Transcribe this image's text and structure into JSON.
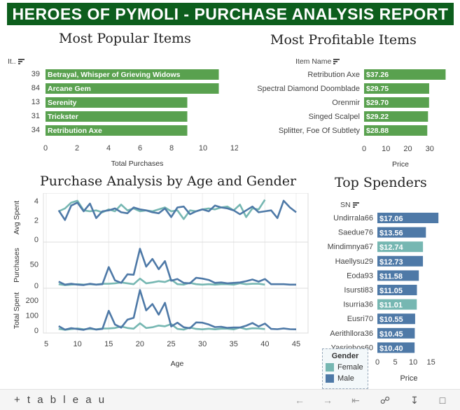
{
  "banner": {
    "title": "HEROES OF PYMOLI - PURCHASE ANALYSIS REPORT"
  },
  "colors": {
    "green_bar": "#59a14f",
    "female": "#76b7b2",
    "male": "#4e79a7",
    "banner_bg": "#0d5e1d"
  },
  "popular": {
    "title": "Most Popular Items",
    "field_label": "It..",
    "xlabel": "Total Purchases",
    "chart_data": {
      "type": "bar",
      "orientation": "horizontal",
      "categories": [
        "Betrayal, Whisper of Grieving Widows",
        "Arcane Gem",
        "Serenity",
        "Trickster",
        "Retribution Axe"
      ],
      "ids": [
        "39",
        "84",
        "13",
        "31",
        "34"
      ],
      "values": [
        11,
        11,
        9,
        9,
        9
      ],
      "xticks": [
        "0",
        "2",
        "4",
        "6",
        "8",
        "10",
        "12"
      ],
      "xlim": [
        0,
        12
      ]
    }
  },
  "profitable": {
    "title": "Most Profitable Items",
    "field_label": "Item Name",
    "xlabel": "Price",
    "chart_data": {
      "type": "bar",
      "orientation": "horizontal",
      "categories": [
        "Retribution Axe",
        "Spectral Diamond Doomblade",
        "Orenmir",
        "Singed Scalpel",
        "Splitter, Foe Of Subtlety"
      ],
      "values": [
        37.26,
        29.75,
        29.7,
        29.22,
        28.88
      ],
      "labels": [
        "$37.26",
        "$29.75",
        "$29.70",
        "$29.22",
        "$28.88"
      ],
      "xticks": [
        "0",
        "10",
        "20",
        "30"
      ],
      "xlim": [
        0,
        40
      ]
    }
  },
  "age_gender": {
    "title": "Purchase Analysis by Age and Gender",
    "xlabel": "Age",
    "panels": [
      "Avg Spent",
      "Purchases",
      "Total Spent"
    ],
    "chart_data": {
      "type": "line",
      "xticks": [
        "5",
        "10",
        "15",
        "20",
        "25",
        "30",
        "35",
        "40",
        "45"
      ],
      "xlim": [
        5,
        45
      ],
      "panels": [
        {
          "ylabel": "Avg Spent",
          "ylim": [
            0,
            4.5
          ],
          "yticks": [
            "0",
            "2",
            "4"
          ],
          "series": [
            {
              "name": "Female",
              "x": [
                7,
                8,
                9,
                10,
                11,
                12,
                13,
                14,
                15,
                16,
                17,
                18,
                19,
                20,
                21,
                22,
                23,
                24,
                25,
                26,
                27,
                28,
                29,
                30,
                31,
                32,
                33,
                34,
                35,
                36,
                37,
                38,
                39,
                40
              ],
              "y": [
                2.9,
                3.2,
                3.8,
                4.0,
                3.0,
                2.9,
                3.0,
                2.8,
                3.1,
                2.9,
                3.6,
                3.0,
                3.2,
                2.9,
                3.0,
                2.9,
                3.1,
                3.3,
                2.9,
                3.0,
                2.1,
                3.0,
                2.9,
                3.1,
                3.2,
                3.1,
                3.3,
                3.4,
                3.0,
                3.6,
                2.3,
                3.2,
                3.1,
                4.1
              ]
            },
            {
              "name": "Male",
              "x": [
                7,
                8,
                9,
                10,
                11,
                12,
                13,
                14,
                15,
                16,
                17,
                18,
                19,
                20,
                21,
                22,
                23,
                24,
                25,
                26,
                27,
                28,
                29,
                30,
                31,
                32,
                33,
                34,
                35,
                36,
                37,
                38,
                39,
                40,
                41,
                42,
                43,
                44,
                45
              ],
              "y": [
                3.0,
                2.0,
                3.5,
                3.8,
                2.9,
                3.7,
                2.2,
                2.9,
                3.0,
                3.2,
                2.8,
                2.7,
                3.3,
                3.1,
                3.0,
                2.8,
                2.7,
                3.2,
                2.3,
                3.3,
                3.4,
                2.6,
                2.9,
                3.1,
                2.9,
                3.5,
                3.3,
                3.2,
                3.0,
                2.6,
                3.0,
                3.4,
                2.8,
                2.9,
                3.0,
                2.2,
                4.0,
                3.3,
                2.8
              ]
            }
          ]
        },
        {
          "ylabel": "Purchases",
          "ylim": [
            0,
            95
          ],
          "yticks": [
            "0",
            "50"
          ],
          "series": [
            {
              "name": "Female",
              "x": [
                7,
                8,
                9,
                10,
                11,
                12,
                13,
                14,
                15,
                16,
                17,
                18,
                19,
                20,
                21,
                22,
                23,
                24,
                25,
                26,
                27,
                28,
                29,
                30,
                31,
                32,
                33,
                34,
                35,
                36,
                37,
                38,
                39,
                40
              ],
              "y": [
                3,
                1,
                2,
                3,
                2,
                3,
                2,
                4,
                4,
                5,
                7,
                5,
                3,
                16,
                5,
                7,
                10,
                8,
                14,
                3,
                2,
                6,
                3,
                2,
                3,
                2,
                3,
                3,
                2,
                5,
                3,
                4,
                4,
                2
              ]
            },
            {
              "name": "Male",
              "x": [
                7,
                8,
                9,
                10,
                11,
                12,
                13,
                14,
                15,
                16,
                17,
                18,
                19,
                20,
                21,
                22,
                23,
                24,
                25,
                26,
                27,
                28,
                29,
                30,
                31,
                32,
                33,
                34,
                35,
                36,
                37,
                38,
                39,
                40,
                41,
                42,
                43,
                44,
                45
              ],
              "y": [
                9,
                2,
                4,
                2,
                1,
                4,
                2,
                3,
                43,
                12,
                6,
                26,
                25,
                86,
                44,
                62,
                38,
                57,
                11,
                15,
                6,
                5,
                18,
                16,
                13,
                6,
                7,
                5,
                6,
                7,
                10,
                14,
                9,
                15,
                3,
                3,
                3,
                2,
                2
              ]
            }
          ]
        },
        {
          "ylabel": "Total Spent",
          "ylim": [
            0,
            260
          ],
          "yticks": [
            "0",
            "100",
            "200"
          ],
          "series": [
            {
              "name": "Female",
              "x": [
                7,
                8,
                9,
                10,
                11,
                12,
                13,
                14,
                15,
                16,
                17,
                18,
                19,
                20,
                21,
                22,
                23,
                24,
                25,
                26,
                27,
                28,
                29,
                30,
                31,
                32,
                33,
                34,
                35,
                36,
                37,
                38,
                39,
                40
              ],
              "y": [
                9,
                3,
                8,
                12,
                6,
                9,
                6,
                11,
                12,
                15,
                25,
                15,
                10,
                46,
                15,
                20,
                31,
                26,
                41,
                9,
                4,
                18,
                9,
                6,
                10,
                6,
                10,
                10,
                6,
                18,
                7,
                13,
                12,
                8
              ]
            },
            {
              "name": "Male",
              "x": [
                7,
                8,
                9,
                10,
                11,
                12,
                13,
                14,
                15,
                16,
                17,
                18,
                19,
                20,
                21,
                22,
                23,
                24,
                25,
                26,
                27,
                28,
                29,
                30,
                31,
                32,
                33,
                34,
                35,
                36,
                37,
                38,
                39,
                40,
                41,
                42,
                43,
                44,
                45
              ],
              "y": [
                27,
                4,
                14,
                8,
                3,
                15,
                4,
                9,
                129,
                38,
                17,
                70,
                82,
                267,
                132,
                174,
                103,
                182,
                25,
                50,
                20,
                13,
                52,
                50,
                38,
                21,
                23,
                16,
                18,
                18,
                30,
                48,
                25,
                44,
                9,
                7,
                12,
                7,
                6
              ]
            }
          ]
        }
      ]
    }
  },
  "spenders": {
    "title": "Top Spenders",
    "field_label": "SN",
    "xlabel": "Price",
    "chart_data": {
      "type": "bar",
      "orientation": "horizontal",
      "categories": [
        "Undirrala66",
        "Saedue76",
        "Mindimnya67",
        "Haellysu29",
        "Eoda93",
        "Isursti83",
        "Isurria36",
        "Eusri70",
        "Aerithllora36",
        "Yasriphos60"
      ],
      "values": [
        17.06,
        13.56,
        12.74,
        12.73,
        11.58,
        11.05,
        11.01,
        10.55,
        10.45,
        10.4
      ],
      "labels": [
        "$17.06",
        "$13.56",
        "$12.74",
        "$12.73",
        "$11.58",
        "$11.05",
        "$11.01",
        "$10.55",
        "$10.45",
        "$10.40"
      ],
      "gender": [
        "Male",
        "Male",
        "Female",
        "Male",
        "Male",
        "Male",
        "Female",
        "Male",
        "Male",
        "Male"
      ],
      "xticks": [
        "0",
        "5",
        "10",
        "15"
      ],
      "xlim": [
        0,
        18
      ]
    }
  },
  "legend": {
    "title": "Gender",
    "items": [
      "Female",
      "Male"
    ]
  },
  "footer": {
    "logo": "+ t a b l e a u"
  }
}
